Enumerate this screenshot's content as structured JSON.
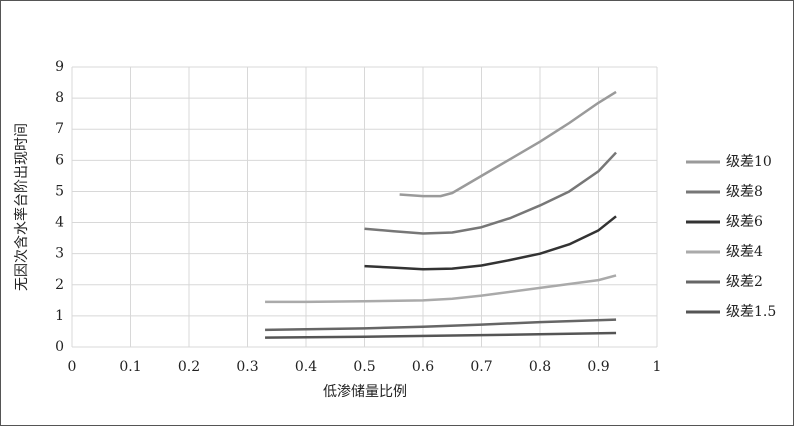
{
  "chart_data": {
    "type": "line",
    "x_label": "低渗储量比例",
    "y_label": "无因次含水率台阶出现时间",
    "xlim": [
      0,
      1
    ],
    "xticks": [
      0,
      0.1,
      0.2,
      0.3,
      0.4,
      0.5,
      0.6,
      0.7,
      0.8,
      0.9,
      1
    ],
    "ylim": [
      0,
      9
    ],
    "yticks": [
      0,
      1,
      2,
      3,
      4,
      5,
      6,
      7,
      8,
      9
    ],
    "grid": true,
    "legend": "right",
    "series": [
      {
        "name": "级差10",
        "color": "#9a9a9a",
        "x": [
          0.56,
          0.6,
          0.63,
          0.65,
          0.7,
          0.75,
          0.8,
          0.85,
          0.9,
          0.93
        ],
        "values": [
          4.9,
          4.85,
          4.85,
          4.95,
          5.5,
          6.05,
          6.6,
          7.2,
          7.85,
          8.2
        ]
      },
      {
        "name": "级差8",
        "color": "#777777",
        "x": [
          0.5,
          0.55,
          0.6,
          0.65,
          0.7,
          0.75,
          0.8,
          0.85,
          0.9,
          0.93
        ],
        "values": [
          3.8,
          3.72,
          3.65,
          3.68,
          3.85,
          4.15,
          4.55,
          5.0,
          5.65,
          6.25
        ]
      },
      {
        "name": "级差6",
        "color": "#333333",
        "x": [
          0.5,
          0.55,
          0.6,
          0.65,
          0.7,
          0.75,
          0.8,
          0.85,
          0.9,
          0.93
        ],
        "values": [
          2.6,
          2.55,
          2.5,
          2.52,
          2.62,
          2.8,
          3.0,
          3.3,
          3.75,
          4.2
        ]
      },
      {
        "name": "级差4",
        "color": "#aaaaaa",
        "x": [
          0.33,
          0.4,
          0.5,
          0.6,
          0.65,
          0.7,
          0.8,
          0.9,
          0.93
        ],
        "values": [
          1.45,
          1.45,
          1.47,
          1.5,
          1.55,
          1.65,
          1.9,
          2.15,
          2.3
        ]
      },
      {
        "name": "级差2",
        "color": "#666666",
        "x": [
          0.33,
          0.5,
          0.6,
          0.7,
          0.8,
          0.93
        ],
        "values": [
          0.55,
          0.6,
          0.65,
          0.72,
          0.8,
          0.88
        ]
      },
      {
        "name": "级差1.5",
        "color": "#555555",
        "x": [
          0.33,
          0.5,
          0.7,
          0.93
        ],
        "values": [
          0.3,
          0.33,
          0.38,
          0.45
        ]
      }
    ]
  }
}
